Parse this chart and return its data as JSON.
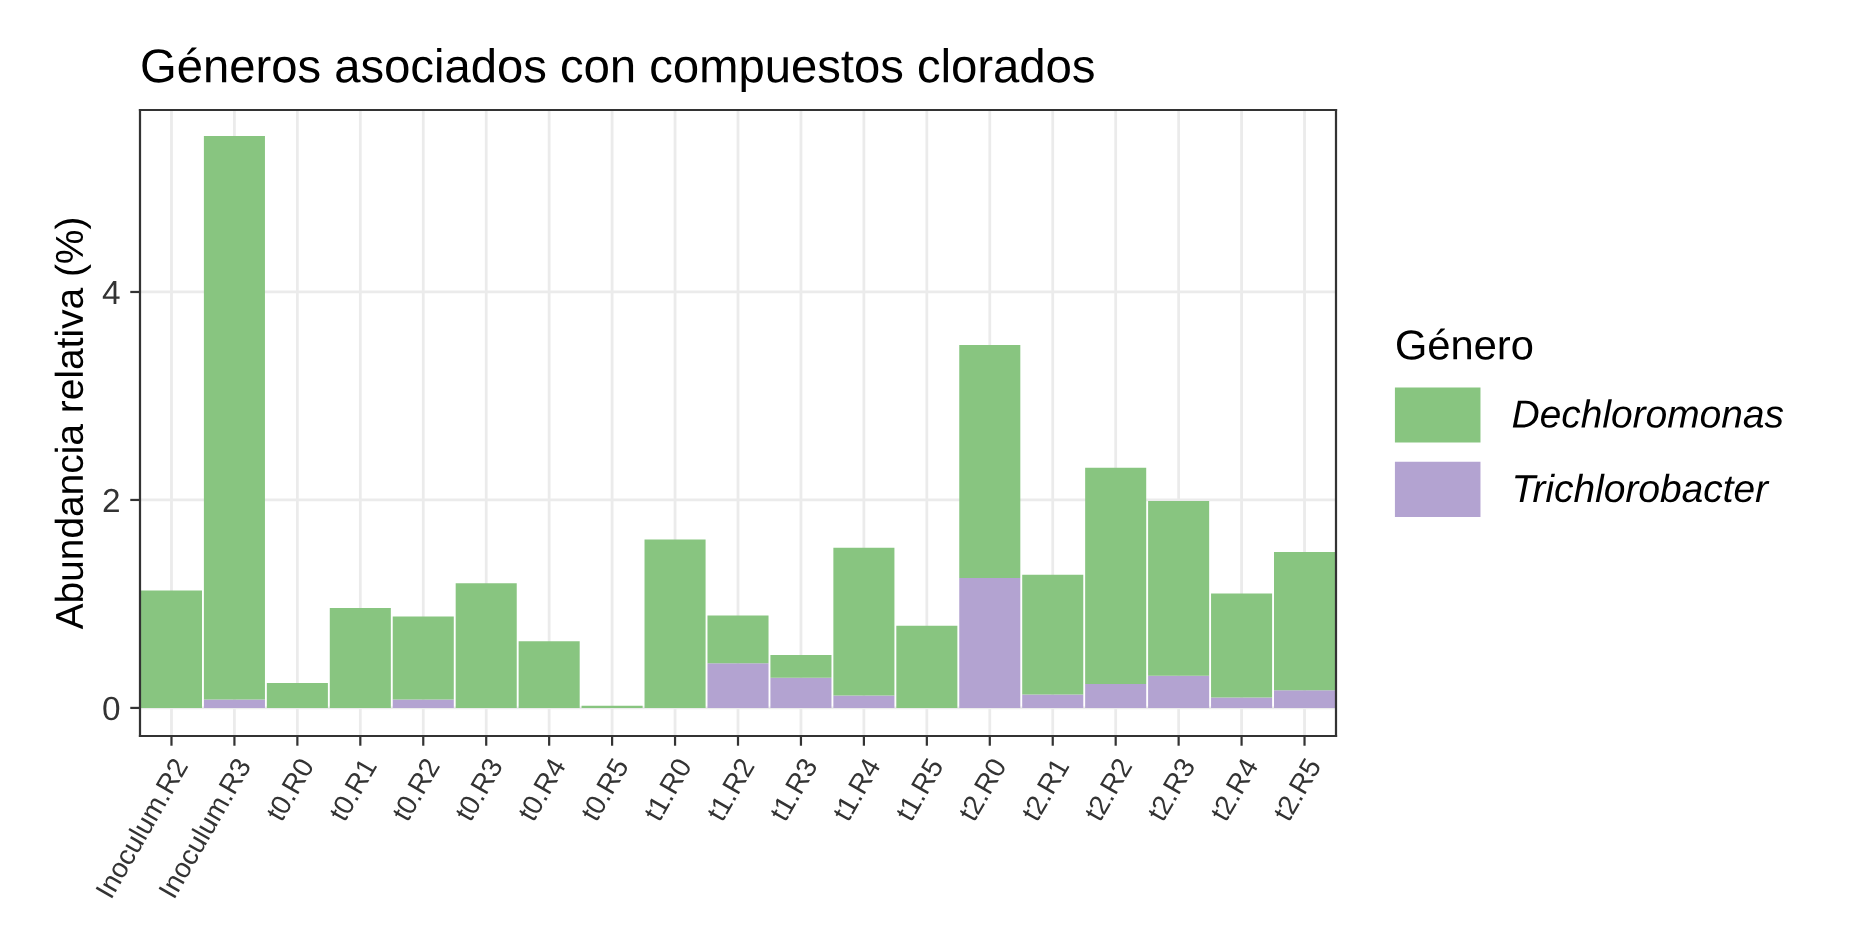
{
  "chart_data": {
    "type": "bar",
    "title": "Géneros asociados con compuestos clorados",
    "ylabel": "Abundancia relativa (%)",
    "legend_title": "Género",
    "categories": [
      "Inoculum.R2",
      "Inoculum.R3",
      "t0.R0",
      "t0.R1",
      "t0.R2",
      "t0.R3",
      "t0.R4",
      "t0.R5",
      "t1.R0",
      "t1.R2",
      "t1.R3",
      "t1.R4",
      "t1.R5",
      "t2.R0",
      "t2.R1",
      "t2.R2",
      "t2.R3",
      "t2.R4",
      "t2.R5"
    ],
    "stacked": true,
    "series": [
      {
        "name": "Trichlorobacter",
        "color": "#b3a3d1",
        "values": [
          0,
          0.08,
          0,
          0,
          0.08,
          0,
          0,
          0,
          0,
          0.43,
          0.29,
          0.12,
          0,
          1.25,
          0.13,
          0.23,
          0.31,
          0.1,
          0.17
        ]
      },
      {
        "name": "Dechloromonas",
        "color": "#88c580",
        "values": [
          1.13,
          5.42,
          0.24,
          0.96,
          0.8,
          1.2,
          0.64,
          0.02,
          1.62,
          0.46,
          0.22,
          1.42,
          0.79,
          2.24,
          1.15,
          2.08,
          1.68,
          1.0,
          1.33
        ]
      }
    ],
    "ylim": [
      -0.27,
      5.75
    ],
    "yticks": [
      0,
      2,
      4
    ],
    "grid": true,
    "legend": "right"
  }
}
